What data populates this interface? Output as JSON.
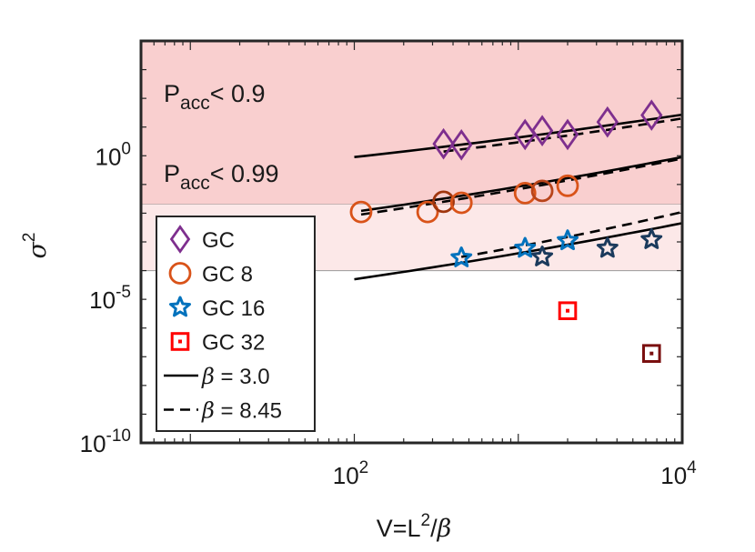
{
  "chart_data": {
    "type": "scatter",
    "xscale": "log",
    "yscale": "log",
    "xlim": [
      5,
      10000
    ],
    "ylim": [
      1e-10,
      10000
    ],
    "xlabel": "V=L²/β",
    "xlabel_parts": {
      "base": "V=L",
      "sup": "2",
      "slash": "/",
      "greek": "β"
    },
    "ylabel": "σ²",
    "ylabel_parts": {
      "greek": "σ",
      "sup": "2"
    },
    "x_ticks": [
      {
        "value": 100,
        "base": "10",
        "exp": "2"
      },
      {
        "value": 10000,
        "base": "10",
        "exp": "4"
      }
    ],
    "y_ticks": [
      {
        "value": 1,
        "base": "10",
        "exp": "0"
      },
      {
        "value": 1e-05,
        "base": "10",
        "exp": "-5"
      },
      {
        "value": 1e-10,
        "base": "10",
        "exp": "-10"
      }
    ],
    "bands": [
      {
        "label_main": "P",
        "label_sub": "acc",
        "label_rest": "< 0.9",
        "ymin": 0.02,
        "ymax": 10000,
        "color": "#f9cfcf"
      },
      {
        "label_main": "P",
        "label_sub": "acc",
        "label_rest": "< 0.99",
        "ymin": 0.0001,
        "ymax": 0.02,
        "color": "#fce8e8"
      }
    ],
    "series": [
      {
        "name": "GC",
        "marker": "diamond",
        "color": "#7e2f8e",
        "points": [
          {
            "x": 350,
            "y": 2.6,
            "color": "#7e2f8e"
          },
          {
            "x": 450,
            "y": 2.4,
            "color": "#7e2f8e"
          },
          {
            "x": 1100,
            "y": 5.5,
            "color": "#7e2f8e"
          },
          {
            "x": 1400,
            "y": 7.5,
            "color": "#7e2f8e"
          },
          {
            "x": 2000,
            "y": 5.5,
            "color": "#7e2f8e"
          },
          {
            "x": 3500,
            "y": 15,
            "color": "#7e2f8e"
          },
          {
            "x": 6500,
            "y": 26,
            "color": "#7e2f8e"
          }
        ]
      },
      {
        "name": "GC 8",
        "marker": "circle",
        "color": "#d95319",
        "points": [
          {
            "x": 110,
            "y": 0.011,
            "color": "#d95319"
          },
          {
            "x": 280,
            "y": 0.011,
            "color": "#d95319"
          },
          {
            "x": 350,
            "y": 0.025,
            "color": "#a0360e"
          },
          {
            "x": 450,
            "y": 0.023,
            "color": "#d95319"
          },
          {
            "x": 1100,
            "y": 0.05,
            "color": "#d95319"
          },
          {
            "x": 1400,
            "y": 0.06,
            "color": "#b8441a"
          },
          {
            "x": 2000,
            "y": 0.09,
            "color": "#d95319"
          }
        ]
      },
      {
        "name": "GC 16",
        "marker": "star",
        "color": "#0072bd",
        "points": [
          {
            "x": 450,
            "y": 0.00028,
            "color": "#0072bd"
          },
          {
            "x": 1100,
            "y": 0.0006,
            "color": "#0072bd"
          },
          {
            "x": 1400,
            "y": 0.0003,
            "color": "#1b3a5c"
          },
          {
            "x": 2000,
            "y": 0.0011,
            "color": "#0072bd"
          },
          {
            "x": 3500,
            "y": 0.0006,
            "color": "#1b3a5c"
          },
          {
            "x": 6500,
            "y": 0.0012,
            "color": "#1b3a5c"
          }
        ]
      },
      {
        "name": "GC 32",
        "marker": "square",
        "color": "#ff0000",
        "points": [
          {
            "x": 2000,
            "y": 4e-06,
            "color": "#ff0000"
          },
          {
            "x": 6500,
            "y": 1.3e-07,
            "color": "#7a0f0f"
          }
        ]
      }
    ],
    "fit_lines": [
      {
        "name": "β = 3.0",
        "style": "solid",
        "color": "#000000",
        "segments": [
          {
            "x": [
              100,
              10000
            ],
            "y": [
              0.9,
              27
            ]
          },
          {
            "x": [
              110,
              10000
            ],
            "y": [
              0.012,
              0.9
            ]
          },
          {
            "x": [
              100,
              10000
            ],
            "y": [
              5e-05,
              0.0045
            ]
          }
        ]
      },
      {
        "name": "β = 8.45",
        "style": "dashed",
        "color": "#000000",
        "segments": [
          {
            "x": [
              350,
              10000
            ],
            "y": [
              1.4,
              20
            ]
          },
          {
            "x": [
              110,
              10000
            ],
            "y": [
              0.009,
              0.8
            ]
          },
          {
            "x": [
              450,
              10000
            ],
            "y": [
              0.0003,
              0.011
            ]
          }
        ]
      }
    ],
    "legend": {
      "position": "bottom-left",
      "entries": [
        {
          "label": "GC",
          "marker": "diamond",
          "color": "#7e2f8e"
        },
        {
          "label": "GC 8",
          "marker": "circle",
          "color": "#d95319"
        },
        {
          "label": "GC 16",
          "marker": "star",
          "color": "#0072bd"
        },
        {
          "label": "GC 32",
          "marker": "square",
          "color": "#ff0000"
        },
        {
          "label": "= 3.0",
          "greek": "β",
          "line": "solid",
          "color": "#000000"
        },
        {
          "label": "= 8.45",
          "greek": "β",
          "line": "dashed",
          "color": "#000000"
        }
      ]
    }
  }
}
